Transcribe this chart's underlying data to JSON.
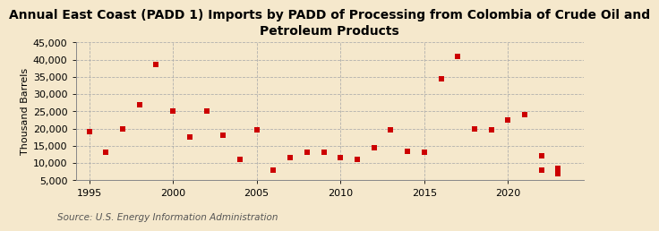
{
  "title": "Annual East Coast (PADD 1) Imports by PADD of Processing from Colombia of Crude Oil and\nPetroleum Products",
  "ylabel": "Thousand Barrels",
  "source": "Source: U.S. Energy Information Administration",
  "background_color": "#f5e8cc",
  "grid_color": "#aaaaaa",
  "marker_color": "#cc0000",
  "years": [
    1995,
    1996,
    1997,
    1998,
    1999,
    2000,
    2001,
    2002,
    2003,
    2004,
    2005,
    2006,
    2007,
    2008,
    2009,
    2010,
    2011,
    2012,
    2013,
    2014,
    2015,
    2016,
    2017,
    2018,
    2019,
    2020,
    2021,
    2022,
    2023
  ],
  "values": [
    19000,
    13000,
    20000,
    27000,
    38500,
    25000,
    17500,
    25000,
    18000,
    11000,
    19500,
    8000,
    11500,
    13000,
    13000,
    11500,
    11000,
    14500,
    19500,
    13500,
    13000,
    34500,
    41000,
    20000,
    19500,
    22500,
    24000,
    12000,
    8500
  ],
  "extra_points": [
    [
      2022,
      8000
    ],
    [
      2023,
      7000
    ]
  ],
  "ylim": [
    5000,
    45000
  ],
  "yticks": [
    5000,
    10000,
    15000,
    20000,
    25000,
    30000,
    35000,
    40000,
    45000
  ],
  "xlim": [
    1994.2,
    2024.5
  ],
  "xticks": [
    1995,
    2000,
    2005,
    2010,
    2015,
    2020
  ],
  "title_fontsize": 10,
  "tick_fontsize": 8,
  "ylabel_fontsize": 8,
  "source_fontsize": 7.5
}
